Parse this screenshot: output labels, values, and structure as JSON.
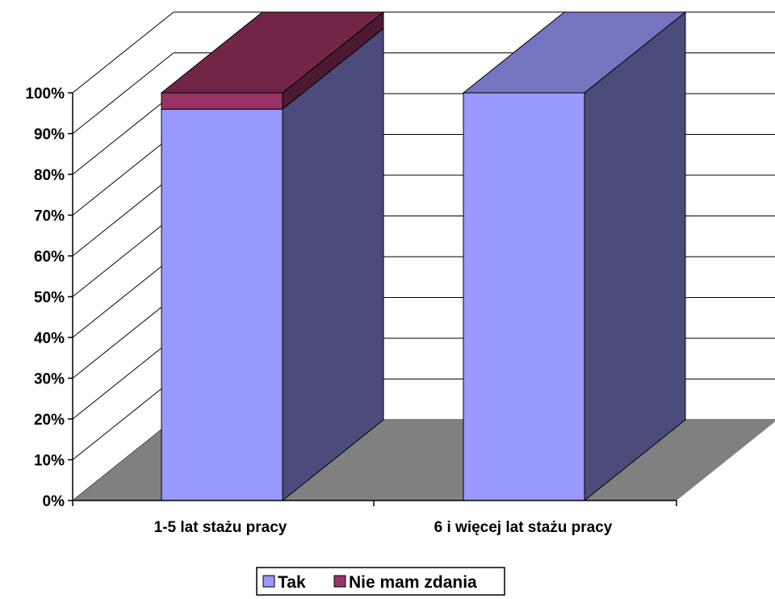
{
  "chart_data": {
    "type": "bar",
    "stacked": true,
    "three_d": true,
    "categories": [
      "1-5 lat stażu pracy",
      "6 i więcej lat stażu pracy"
    ],
    "series": [
      {
        "name": "Tak",
        "values": [
          96,
          100
        ],
        "color": "#9999ff",
        "side_color": "#4b4c7c",
        "top_color": "#7474c0"
      },
      {
        "name": "Nie mam zdania",
        "values": [
          4,
          0
        ],
        "color": "#993366",
        "side_color": "#4d1a33",
        "top_color": "#722547"
      }
    ],
    "y_ticks": [
      "0%",
      "10%",
      "20%",
      "30%",
      "40%",
      "50%",
      "60%",
      "70%",
      "80%",
      "90%",
      "100%"
    ],
    "ylim": [
      0,
      100
    ],
    "grid": true,
    "legend_position": "bottom",
    "floor_color": "#808080"
  }
}
